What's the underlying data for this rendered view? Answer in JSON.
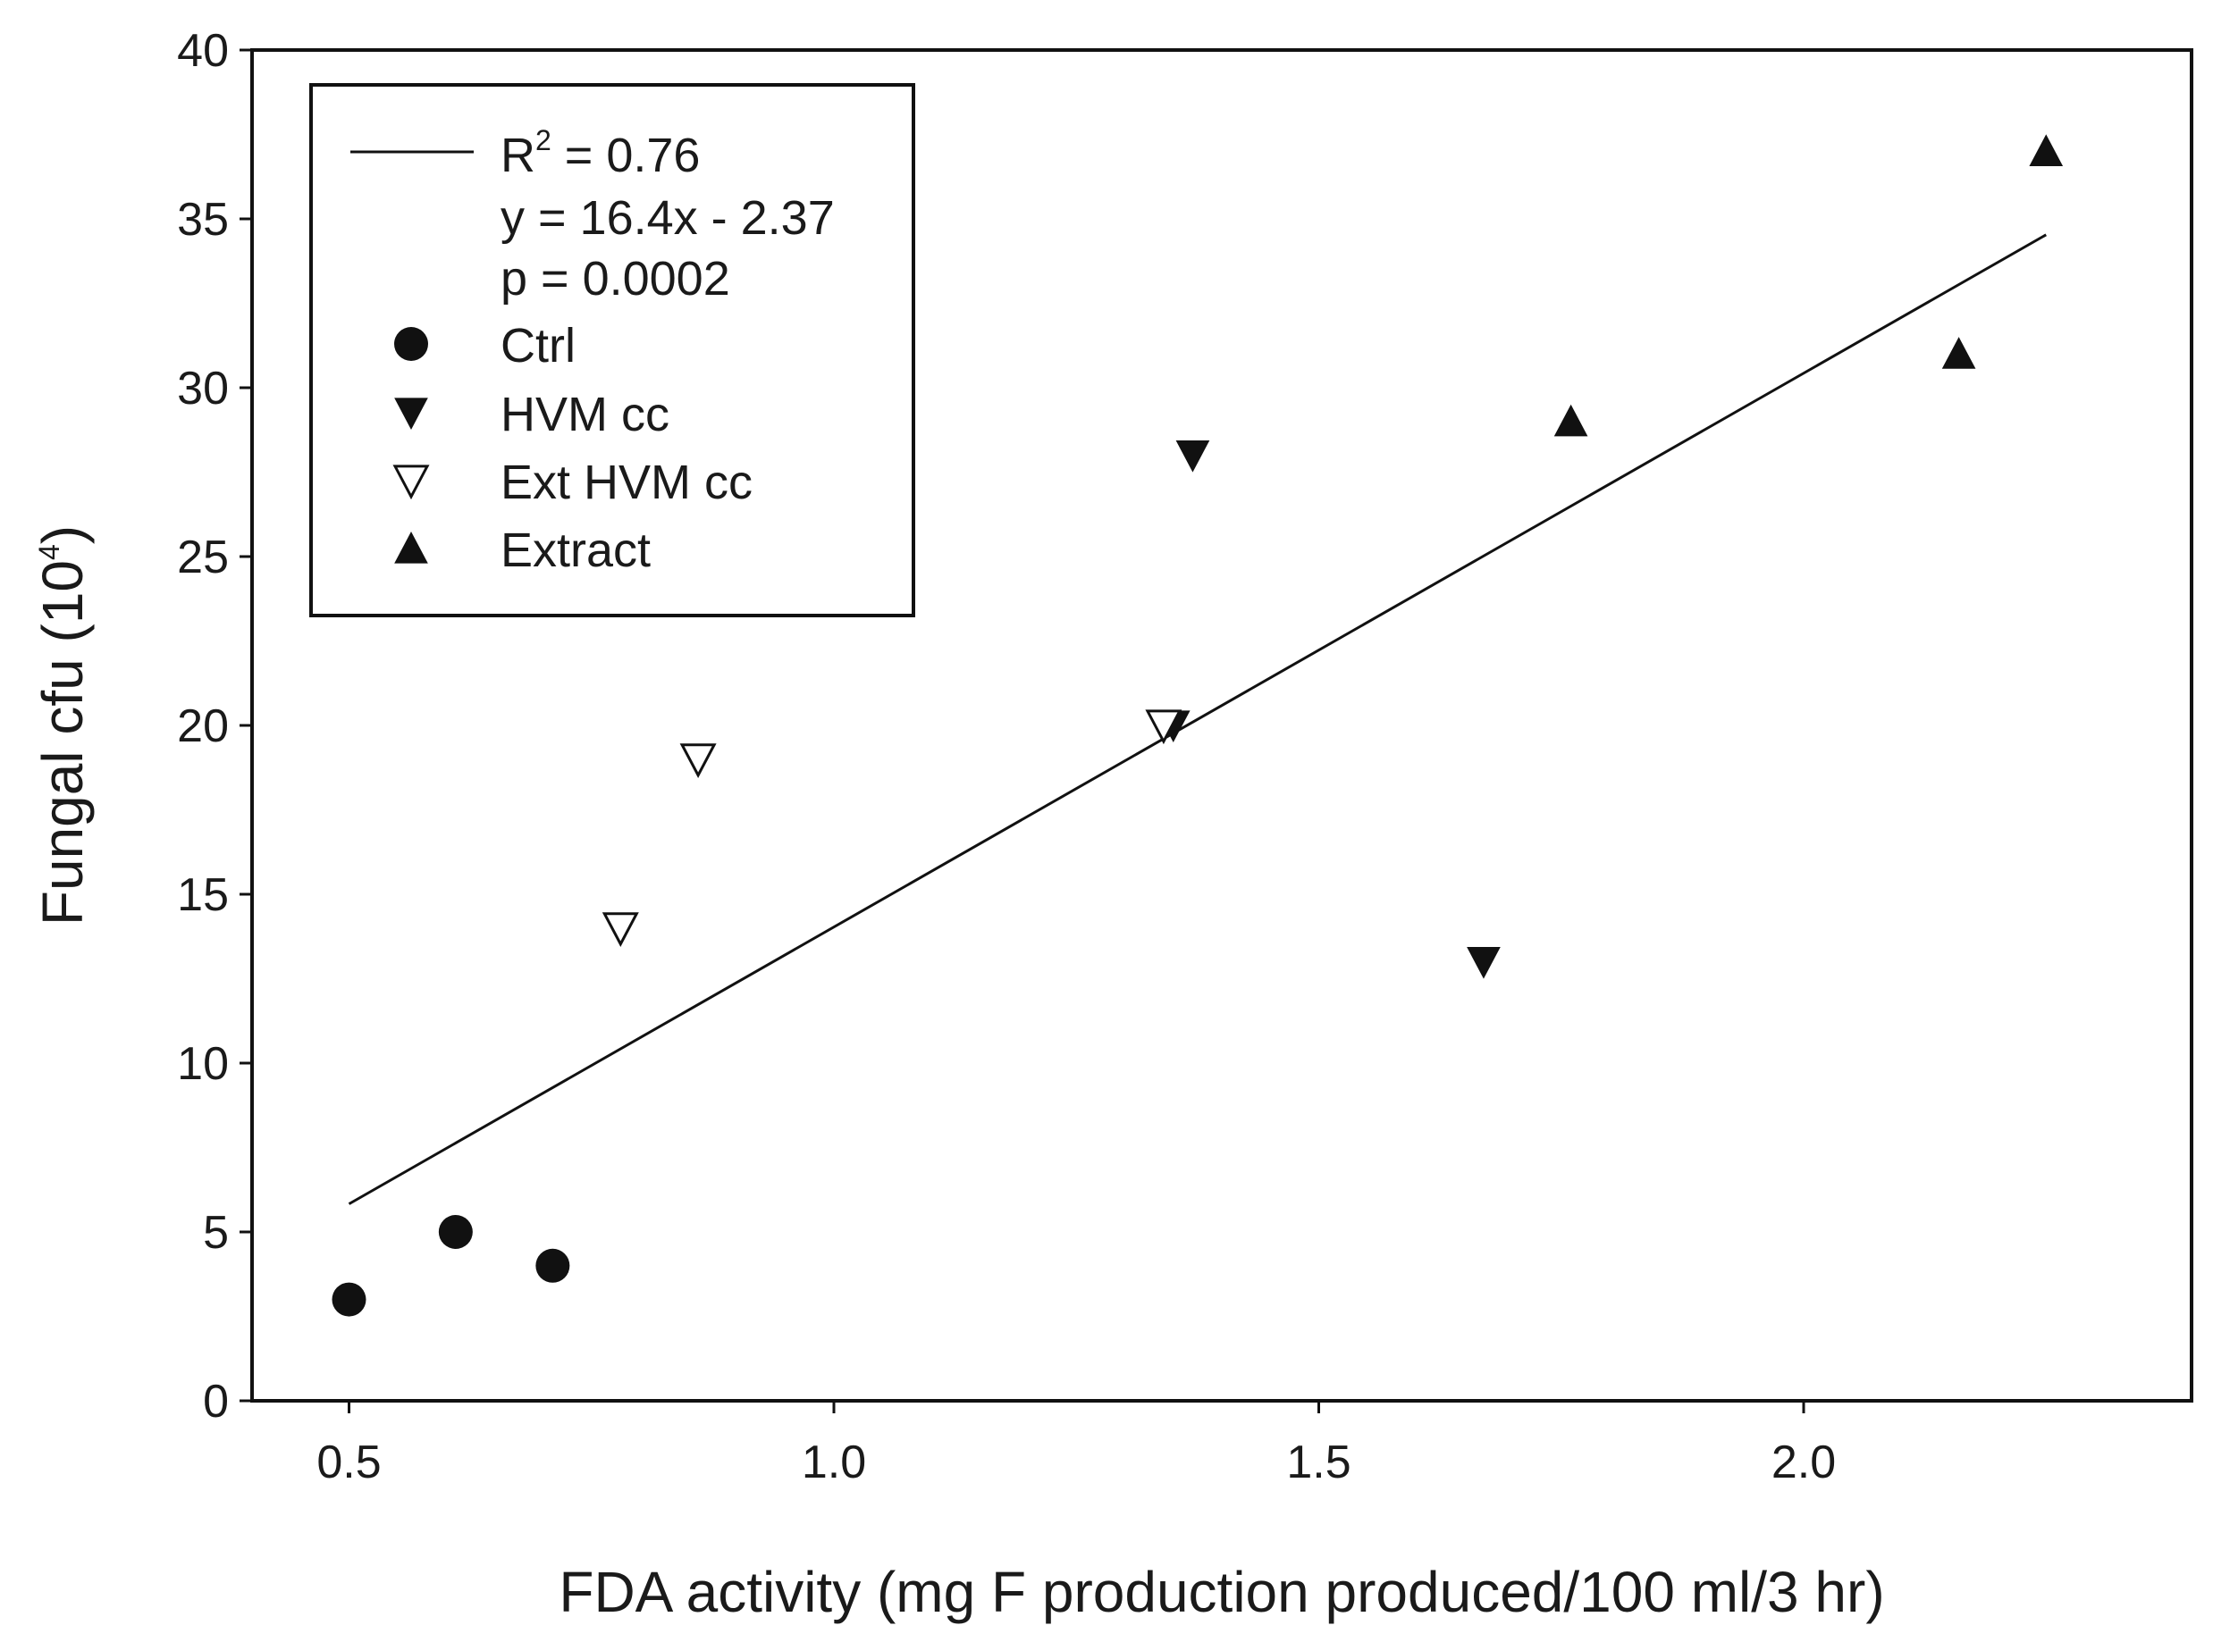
{
  "chart_data": {
    "type": "scatter",
    "title": "",
    "xlabel": "FDA activity (mg F production produced/100 ml/3 hr)",
    "ylabel": {
      "text": "Fungal cfu (10",
      "sup": "4",
      "close": ")"
    },
    "xlim": [
      0.4,
      2.4
    ],
    "ylim": [
      0,
      40
    ],
    "x_ticks": [
      0.5,
      1.0,
      1.5,
      2.0
    ],
    "x_tick_labels": [
      "0.5",
      "1.0",
      "1.5",
      "2.0"
    ],
    "y_ticks": [
      0,
      5,
      10,
      15,
      20,
      25,
      30,
      35,
      40
    ],
    "y_tick_labels": [
      "0",
      "5",
      "10",
      "15",
      "20",
      "25",
      "30",
      "35",
      "40"
    ],
    "grid": false,
    "series": [
      {
        "name": "Ctrl",
        "marker": "circle-filled",
        "x": [
          0.5,
          0.61,
          0.71
        ],
        "y": [
          3,
          5,
          4
        ]
      },
      {
        "name": "HVM cc",
        "marker": "triangle-down-filled",
        "x": [
          1.37,
          1.67,
          1.35
        ],
        "y": [
          28,
          13,
          20
        ]
      },
      {
        "name": "Ext HVM cc",
        "marker": "triangle-down-open",
        "x": [
          0.78,
          0.86,
          1.34
        ],
        "y": [
          14,
          19,
          20
        ]
      },
      {
        "name": "Extract",
        "marker": "triangle-up-filled",
        "x": [
          1.76,
          2.16,
          2.25
        ],
        "y": [
          29,
          31,
          37
        ]
      }
    ],
    "regression": {
      "slope": 16.4,
      "intercept": -2.37,
      "x_range": [
        0.5,
        2.25
      ],
      "r2_label": "R",
      "r2_sup": "2",
      "r2_value": " = 0.76",
      "equation": "y = 16.4x - 2.37",
      "p_value": "p = 0.0002"
    },
    "legend_position": "top-left",
    "colors": {
      "ink": "#111111",
      "open_fill": "#ffffff",
      "background": "#ffffff"
    }
  }
}
